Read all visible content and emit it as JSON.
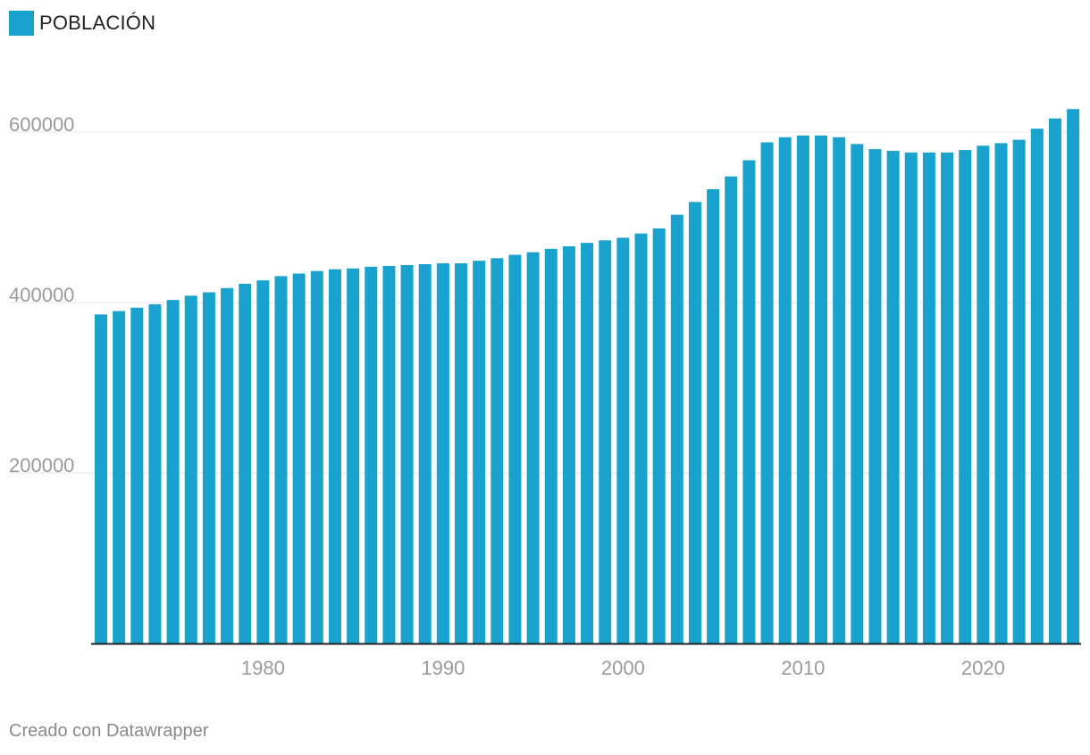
{
  "legend": {
    "label": "POBLACIÓN"
  },
  "footer": {
    "credit": "Creado con Datawrapper"
  },
  "colors": {
    "bar": "#1aa2cf",
    "grid": "#e6e6e6",
    "axis": "#222222",
    "tick_text": "#9a9a9a"
  },
  "chart_data": {
    "type": "bar",
    "title": "",
    "xlabel": "",
    "ylabel": "",
    "legend": [
      "POBLACIÓN"
    ],
    "legend_position": "top-left",
    "grid": true,
    "ylim": [
      0,
      660000
    ],
    "yticks": [
      200000,
      400000,
      600000
    ],
    "xlim": [
      1971,
      2025
    ],
    "xticks": [
      1980,
      1990,
      2000,
      2010,
      2020
    ],
    "categories": [
      1971,
      1972,
      1973,
      1974,
      1975,
      1976,
      1977,
      1978,
      1979,
      1980,
      1981,
      1982,
      1983,
      1984,
      1985,
      1986,
      1987,
      1988,
      1989,
      1990,
      1991,
      1992,
      1993,
      1994,
      1995,
      1996,
      1997,
      1998,
      1999,
      2000,
      2001,
      2002,
      2003,
      2004,
      2005,
      2006,
      2007,
      2008,
      2009,
      2010,
      2011,
      2012,
      2013,
      2014,
      2015,
      2016,
      2017,
      2018,
      2019,
      2020,
      2021,
      2022,
      2023,
      2024,
      2025
    ],
    "series": [
      {
        "name": "POBLACIÓN",
        "values": [
          386000,
          390000,
          394000,
          398000,
          403000,
          408000,
          412000,
          417000,
          422000,
          426000,
          431000,
          434000,
          437000,
          439000,
          440000,
          442000,
          443000,
          444000,
          445000,
          446000,
          446000,
          449000,
          452000,
          456000,
          459000,
          463000,
          466000,
          470000,
          473000,
          476000,
          481000,
          487000,
          503000,
          518000,
          533000,
          548000,
          567000,
          588000,
          594000,
          596000,
          596000,
          594000,
          586000,
          580000,
          578000,
          576000,
          576000,
          576000,
          579000,
          584000,
          587000,
          591000,
          604000,
          616000,
          627000
        ]
      }
    ]
  }
}
